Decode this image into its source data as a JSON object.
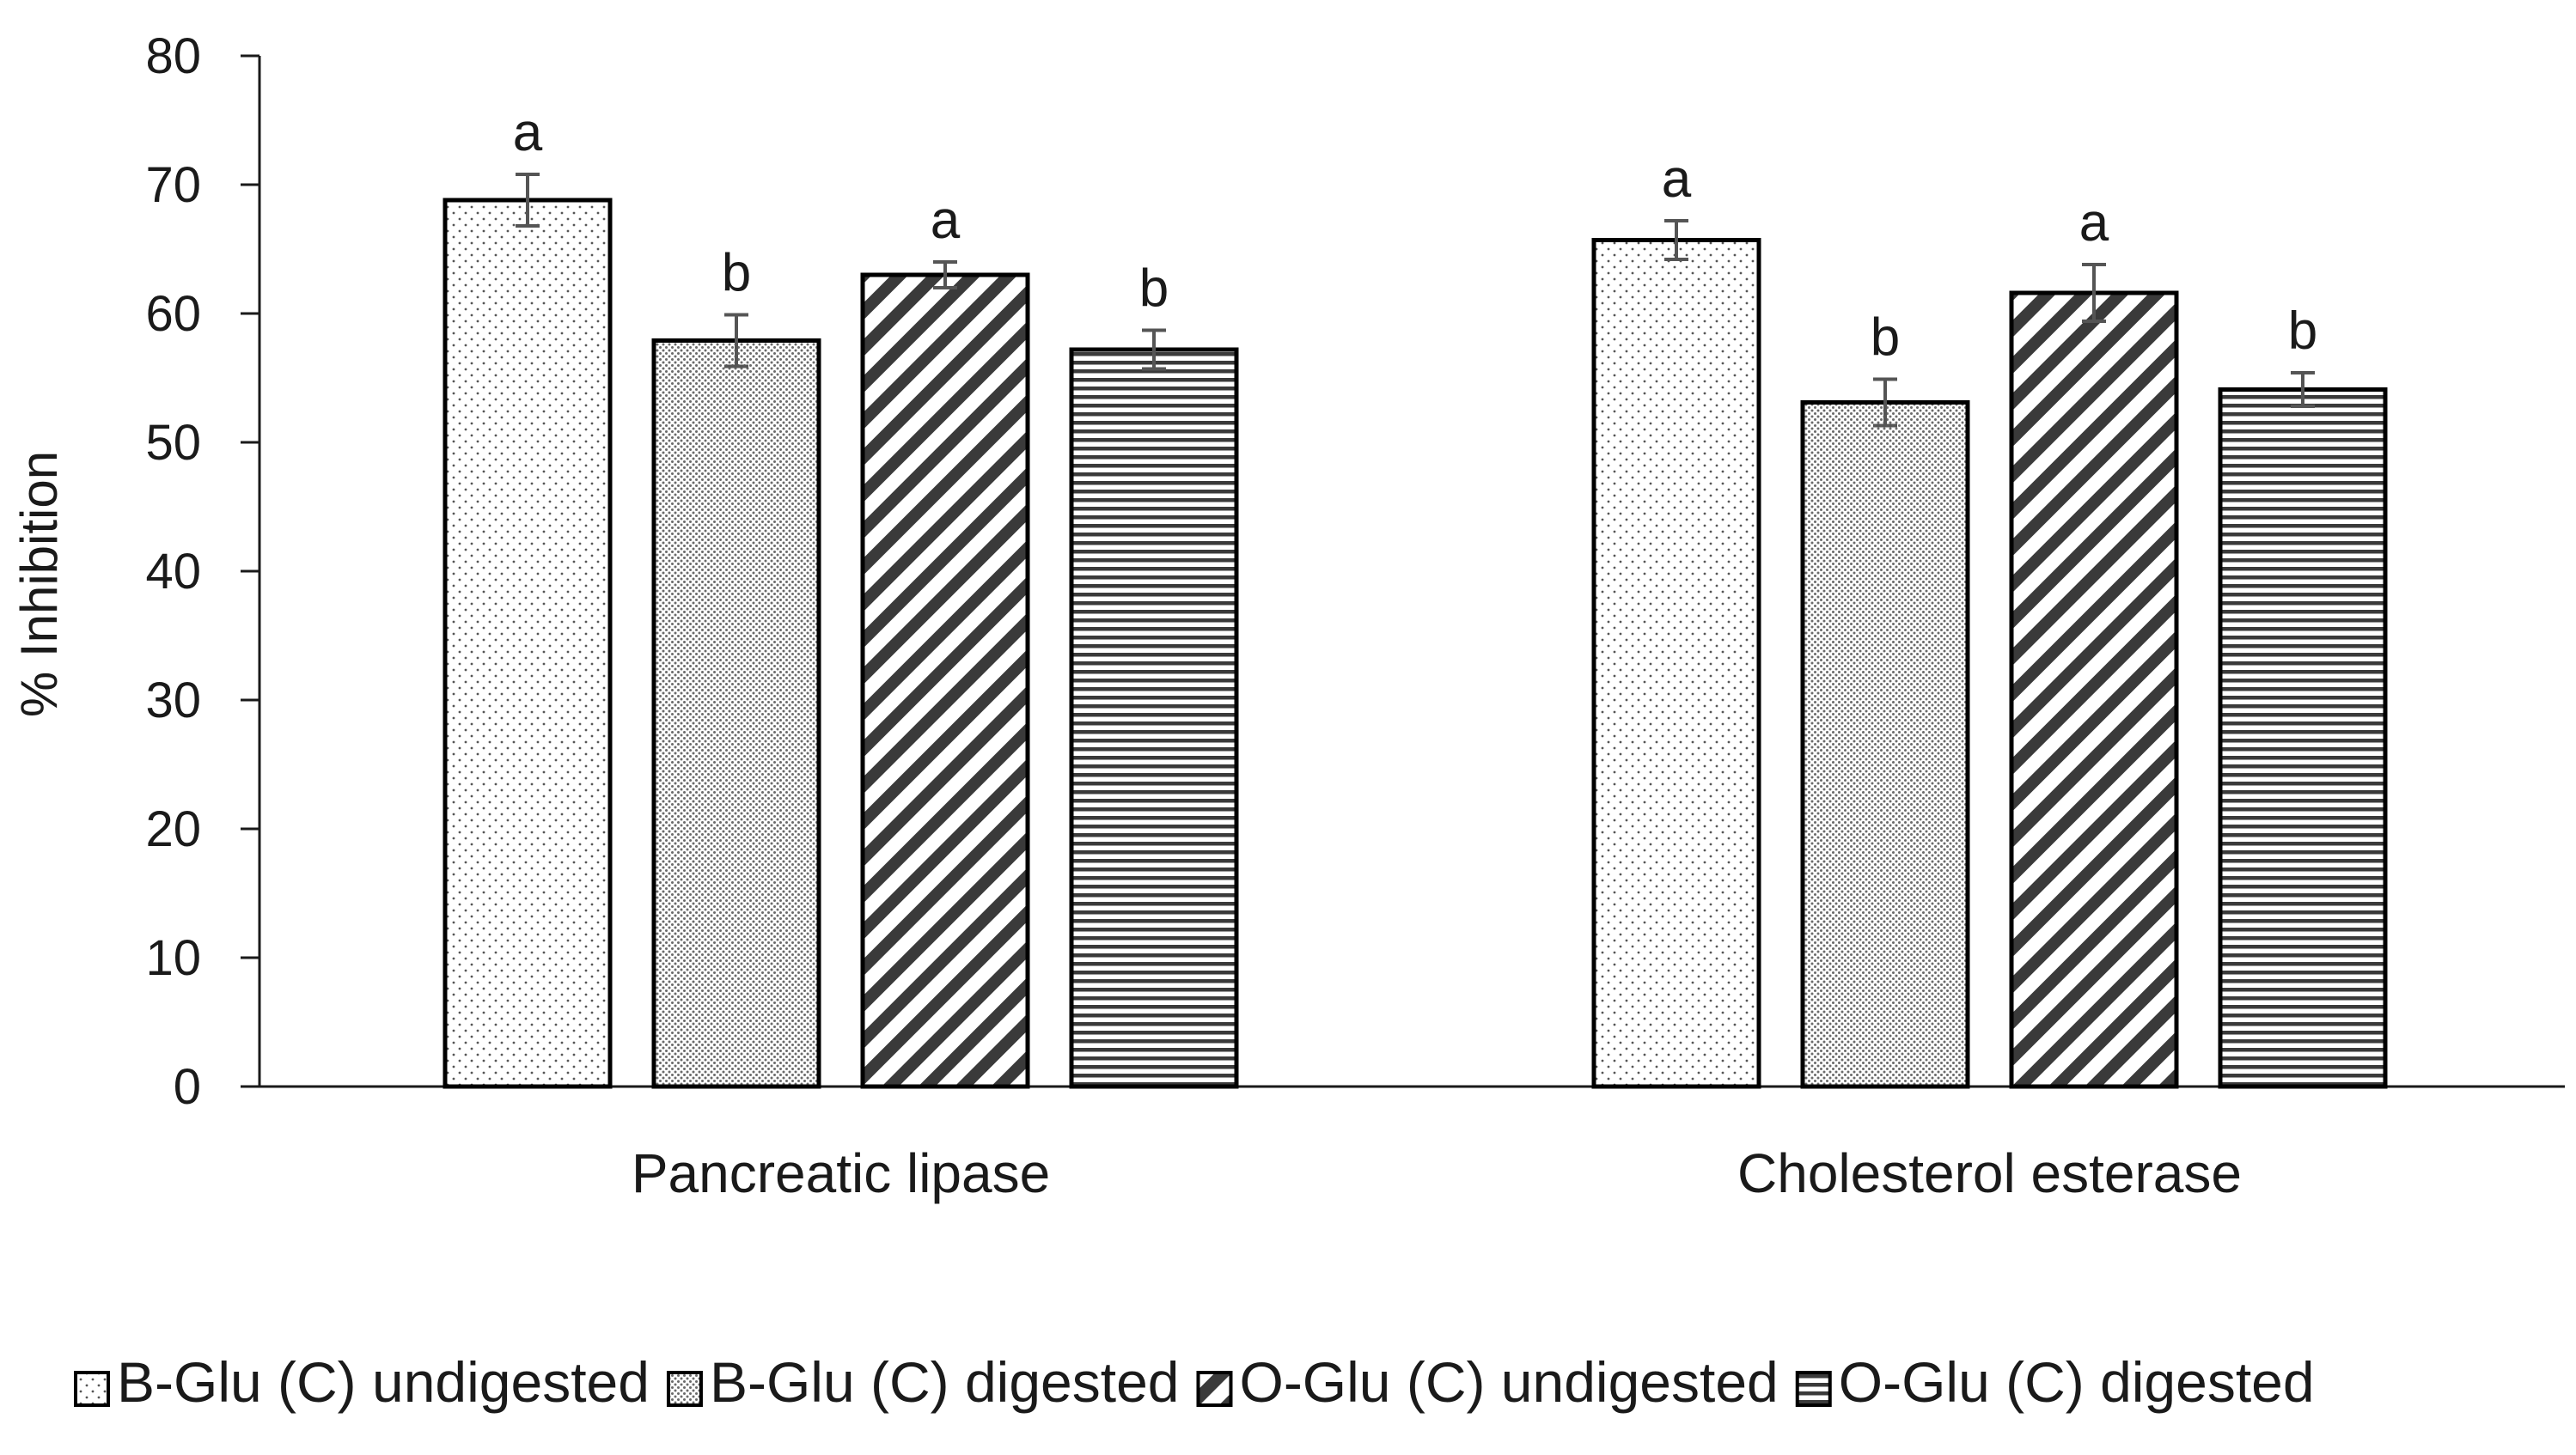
{
  "chart_data": {
    "type": "bar",
    "title": "",
    "xlabel": "",
    "ylabel": "% Inhibition",
    "ylim": [
      0,
      80
    ],
    "yticks": [
      "0",
      "10",
      "20",
      "30",
      "40",
      "50",
      "60",
      "70",
      "80"
    ],
    "categories": [
      "Pancreatic lipase",
      "Cholesterol esterase"
    ],
    "series": [
      {
        "name": "B-Glu (C) undigested",
        "pattern": "dots",
        "values": [
          68.8,
          65.7
        ],
        "errors": [
          2.0,
          1.5
        ],
        "significance": [
          "a",
          "a"
        ]
      },
      {
        "name": "B-Glu (C) digested",
        "pattern": "dense-dots",
        "values": [
          57.9,
          53.1
        ],
        "errors": [
          2.0,
          1.8
        ],
        "significance": [
          "b",
          "b"
        ]
      },
      {
        "name": "O-Glu (C) undigested",
        "pattern": "diagonal",
        "values": [
          63.0,
          61.6
        ],
        "errors": [
          1.0,
          2.2
        ],
        "significance": [
          "a",
          "a"
        ]
      },
      {
        "name": "O-Glu (C) digested",
        "pattern": "horizontal",
        "values": [
          57.2,
          54.1
        ],
        "errors": [
          1.5,
          1.3
        ],
        "significance": [
          "b",
          "b"
        ]
      }
    ],
    "legend_position": "bottom",
    "grid": false,
    "colors": {
      "axis": "#1a1a1a",
      "bar_outline": "#000000",
      "error_bar": "#555555",
      "pattern": "#333333"
    }
  }
}
